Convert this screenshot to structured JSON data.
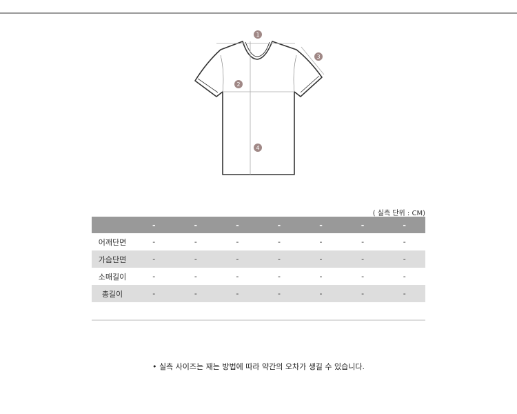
{
  "diagram": {
    "markers": [
      "1",
      "2",
      "3",
      "4"
    ],
    "marker_color": "#a08886"
  },
  "size_table": {
    "unit_label": "( 실측 단위 : CM)",
    "header": [
      "",
      "-",
      "-",
      "-",
      "-",
      "-",
      "-",
      "-"
    ],
    "rows": [
      {
        "label": "어깨단면",
        "values": [
          "-",
          "-",
          "-",
          "-",
          "-",
          "-",
          "-"
        ]
      },
      {
        "label": "가슴단면",
        "values": [
          "-",
          "-",
          "-",
          "-",
          "-",
          "-",
          "-"
        ]
      },
      {
        "label": "소매길이",
        "values": [
          "-",
          "-",
          "-",
          "-",
          "-",
          "-",
          "-"
        ]
      },
      {
        "label": "총길이",
        "values": [
          "-",
          "-",
          "-",
          "-",
          "-",
          "-",
          "-"
        ]
      }
    ]
  },
  "note": "• 실측 사이즈는 재는 방법에 따라 약간의 오차가 생길 수 있습니다."
}
